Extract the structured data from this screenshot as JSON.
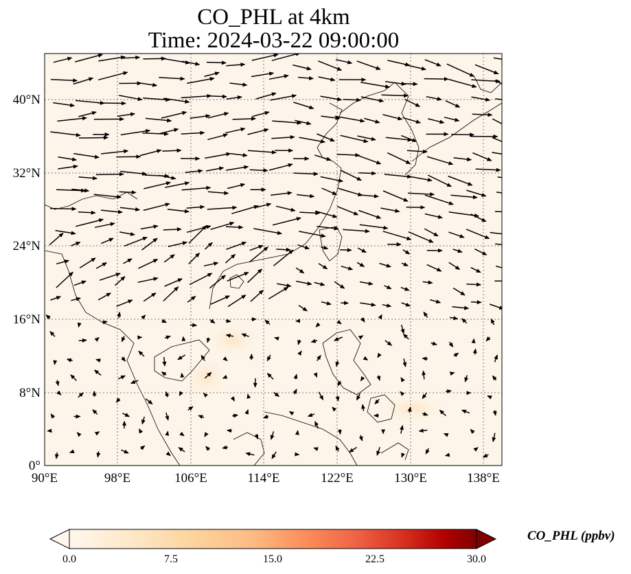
{
  "title": {
    "line1": "CO_PHL at 4km",
    "line2": "Time: 2024-03-22 09:00:00"
  },
  "map": {
    "projection": "PlateCarree",
    "lon_range": [
      90,
      140
    ],
    "lat_range": [
      0,
      45
    ],
    "gridlines": "dotted",
    "field": "CO_PHL",
    "field_level": "near-zero everywhere (0-1 ppbv)",
    "vector_field": "wind arrows (westerlies in north, weak in south)"
  },
  "axes": {
    "x_ticks": [
      "90°E",
      "98°E",
      "106°E",
      "114°E",
      "122°E",
      "130°E",
      "138°E"
    ],
    "y_ticks": [
      "40°N",
      "32°N",
      "24°N",
      "16°N",
      "8°N",
      "0°"
    ]
  },
  "colorbar": {
    "label": "CO_PHL (ppbv)",
    "min": 0.0,
    "max": 30.0,
    "ticks": [
      "0.0",
      "7.5",
      "15.0",
      "22.5",
      "30.0"
    ],
    "colormap": "OrRd",
    "extend": "both",
    "colors": [
      "#fff7ec",
      "#fee8c8",
      "#fdd49e",
      "#fdbb84",
      "#fc8d59",
      "#ef6548",
      "#d7301f",
      "#b30000",
      "#7f0000"
    ]
  }
}
